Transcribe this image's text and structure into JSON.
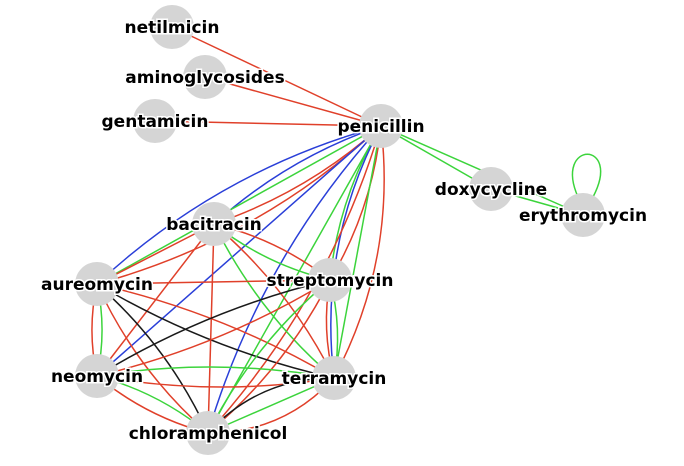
{
  "colors": {
    "red": "#e0402a",
    "green": "#3cd43c",
    "blue": "#2a3fd8",
    "black": "#1a1a1a",
    "node": "#d5d5d5"
  },
  "nodes": [
    {
      "id": "netilmicin",
      "label": "netilmicin"
    },
    {
      "id": "aminoglycosides",
      "label": "aminoglycosides"
    },
    {
      "id": "gentamicin",
      "label": "gentamicin"
    },
    {
      "id": "penicillin",
      "label": "penicillin"
    },
    {
      "id": "doxycycline",
      "label": "doxycycline"
    },
    {
      "id": "erythromycin",
      "label": "erythromycin"
    },
    {
      "id": "bacitracin",
      "label": "bacitracin"
    },
    {
      "id": "aureomycin",
      "label": "aureomycin"
    },
    {
      "id": "streptomycin",
      "label": "streptomycin"
    },
    {
      "id": "neomycin",
      "label": "neomycin"
    },
    {
      "id": "terramycin",
      "label": "terramycin"
    },
    {
      "id": "chloramphenicol",
      "label": "chloramphenicol"
    }
  ],
  "edges": [
    {
      "source": "netilmicin",
      "target": "penicillin",
      "color": "red"
    },
    {
      "source": "aminoglycosides",
      "target": "penicillin",
      "color": "red"
    },
    {
      "source": "gentamicin",
      "target": "penicillin",
      "color": "red"
    },
    {
      "source": "penicillin",
      "target": "doxycycline",
      "color": "green"
    },
    {
      "source": "penicillin",
      "target": "erythromycin",
      "color": "green"
    },
    {
      "source": "doxycycline",
      "target": "erythromycin",
      "color": "green"
    },
    {
      "source": "penicillin",
      "target": "bacitracin",
      "color": "red"
    },
    {
      "source": "penicillin",
      "target": "bacitracin",
      "color": "blue"
    },
    {
      "source": "penicillin",
      "target": "aureomycin",
      "color": "red"
    },
    {
      "source": "penicillin",
      "target": "aureomycin",
      "color": "green"
    },
    {
      "source": "penicillin",
      "target": "aureomycin",
      "color": "blue"
    },
    {
      "source": "penicillin",
      "target": "streptomycin",
      "color": "red"
    },
    {
      "source": "penicillin",
      "target": "streptomycin",
      "color": "green"
    },
    {
      "source": "penicillin",
      "target": "neomycin",
      "color": "blue"
    },
    {
      "source": "penicillin",
      "target": "terramycin",
      "color": "red"
    },
    {
      "source": "penicillin",
      "target": "terramycin",
      "color": "green"
    },
    {
      "source": "penicillin",
      "target": "terramycin",
      "color": "blue"
    },
    {
      "source": "penicillin",
      "target": "chloramphenicol",
      "color": "red"
    },
    {
      "source": "penicillin",
      "target": "chloramphenicol",
      "color": "green"
    },
    {
      "source": "penicillin",
      "target": "chloramphenicol",
      "color": "blue"
    },
    {
      "source": "bacitracin",
      "target": "aureomycin",
      "color": "red"
    },
    {
      "source": "bacitracin",
      "target": "streptomycin",
      "color": "red"
    },
    {
      "source": "bacitracin",
      "target": "streptomycin",
      "color": "green"
    },
    {
      "source": "bacitracin",
      "target": "neomycin",
      "color": "red"
    },
    {
      "source": "bacitracin",
      "target": "terramycin",
      "color": "red"
    },
    {
      "source": "bacitracin",
      "target": "terramycin",
      "color": "green"
    },
    {
      "source": "bacitracin",
      "target": "chloramphenicol",
      "color": "red"
    },
    {
      "source": "aureomycin",
      "target": "streptomycin",
      "color": "red"
    },
    {
      "source": "aureomycin",
      "target": "neomycin",
      "color": "green"
    },
    {
      "source": "aureomycin",
      "target": "neomycin",
      "color": "red"
    },
    {
      "source": "aureomycin",
      "target": "terramycin",
      "color": "red"
    },
    {
      "source": "aureomycin",
      "target": "terramycin",
      "color": "black"
    },
    {
      "source": "aureomycin",
      "target": "chloramphenicol",
      "color": "black"
    },
    {
      "source": "aureomycin",
      "target": "chloramphenicol",
      "color": "red"
    },
    {
      "source": "streptomycin",
      "target": "neomycin",
      "color": "red"
    },
    {
      "source": "streptomycin",
      "target": "neomycin",
      "color": "black"
    },
    {
      "source": "streptomycin",
      "target": "terramycin",
      "color": "green"
    },
    {
      "source": "streptomycin",
      "target": "terramycin",
      "color": "red"
    },
    {
      "source": "streptomycin",
      "target": "chloramphenicol",
      "color": "red"
    },
    {
      "source": "streptomycin",
      "target": "chloramphenicol",
      "color": "green"
    },
    {
      "source": "neomycin",
      "target": "terramycin",
      "color": "green"
    },
    {
      "source": "neomycin",
      "target": "terramycin",
      "color": "red"
    },
    {
      "source": "neomycin",
      "target": "chloramphenicol",
      "color": "green"
    },
    {
      "source": "neomycin",
      "target": "chloramphenicol",
      "color": "red"
    },
    {
      "source": "terramycin",
      "target": "chloramphenicol",
      "color": "red"
    },
    {
      "source": "terramycin",
      "target": "chloramphenicol",
      "color": "green"
    },
    {
      "source": "terramycin",
      "target": "chloramphenicol",
      "color": "black"
    }
  ]
}
